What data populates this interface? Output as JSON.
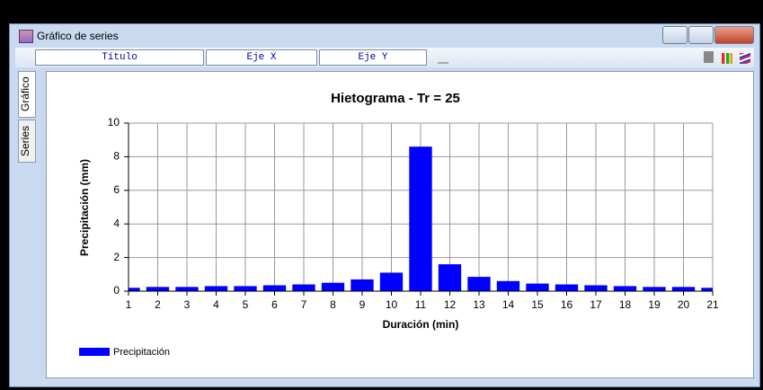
{
  "window": {
    "title": "Gráfico de series",
    "toolbar": [
      "Título",
      "Eje X",
      "Eje Y"
    ],
    "tabs": [
      "Gráfico",
      "Series"
    ]
  },
  "chart_data": {
    "type": "bar",
    "title": "Hietograma - Tr = 25",
    "x_label": "Duración (min)",
    "y_label": "Precipitación (mm)",
    "x": [
      1,
      2,
      3,
      4,
      5,
      6,
      7,
      8,
      9,
      10,
      11,
      12,
      13,
      14,
      15,
      16,
      17,
      18,
      19,
      20,
      21
    ],
    "series": [
      {
        "name": "Precipitación",
        "color": "#0000ff",
        "values": [
          0.2,
          0.25,
          0.25,
          0.3,
          0.3,
          0.35,
          0.4,
          0.5,
          0.7,
          1.1,
          8.6,
          1.6,
          0.85,
          0.6,
          0.45,
          0.4,
          0.35,
          0.3,
          0.25,
          0.25,
          0.2
        ]
      }
    ],
    "xlim": [
      1,
      21
    ],
    "xticks": [
      1,
      2,
      3,
      4,
      5,
      6,
      7,
      8,
      9,
      10,
      11,
      12,
      13,
      14,
      15,
      16,
      17,
      18,
      19,
      20,
      21
    ],
    "ylim": [
      0,
      10
    ],
    "yticks": [
      0,
      2,
      4,
      6,
      8,
      10
    ],
    "grid": true,
    "legend": "bottom-left"
  }
}
